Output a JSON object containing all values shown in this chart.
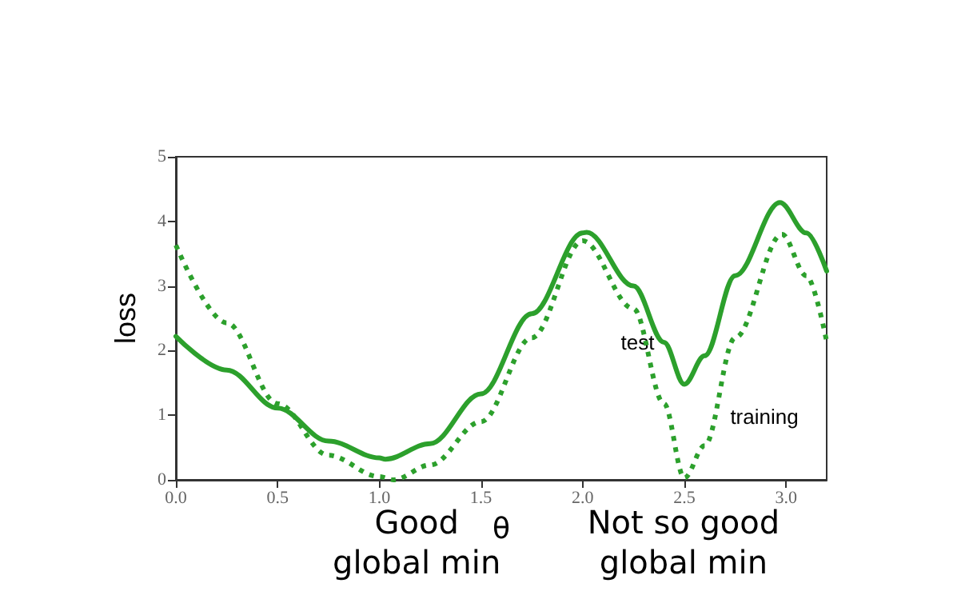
{
  "chart_data": {
    "type": "line",
    "xlabel": "θ",
    "ylabel": "loss",
    "xlim": [
      0,
      3.2
    ],
    "xticks": [
      {
        "value": 0,
        "label": "0.0"
      },
      {
        "value": 0.5,
        "label": "0.5"
      },
      {
        "value": 1,
        "label": "1.0"
      },
      {
        "value": 1.5,
        "label": "1.5"
      },
      {
        "value": 2,
        "label": "2.0"
      },
      {
        "value": 2.5,
        "label": "2.5"
      },
      {
        "value": 3,
        "label": "3.0"
      }
    ],
    "ylim": [
      0,
      5
    ],
    "yticks": [
      0,
      1,
      2,
      3,
      4,
      5
    ],
    "grid": false,
    "marker": "none",
    "series": [
      {
        "name": "test",
        "color": "#2ca02c",
        "line_style": "solid",
        "x": [
          0,
          0.25,
          0.5,
          0.75,
          1.0,
          1.03,
          1.25,
          1.5,
          1.75,
          2.0,
          2.02,
          2.25,
          2.4,
          2.5,
          2.6,
          2.75,
          2.97,
          3.1,
          3.2
        ],
        "values": [
          2.22,
          1.7,
          1.11,
          0.6,
          0.34,
          0.32,
          0.56,
          1.33,
          2.57,
          3.82,
          3.83,
          3.0,
          2.13,
          1.48,
          1.92,
          3.16,
          4.29,
          3.82,
          3.23
        ]
      },
      {
        "name": "training",
        "color": "#2ca02c",
        "line_style": "dotted",
        "x": [
          0,
          0.25,
          0.5,
          0.75,
          1.0,
          1.07,
          1.25,
          1.5,
          1.75,
          2.0,
          2.25,
          2.4,
          2.5,
          2.6,
          2.75,
          2.98,
          3.1,
          3.2
        ],
        "values": [
          3.63,
          2.43,
          1.18,
          0.38,
          0.05,
          0,
          0.23,
          0.9,
          2.2,
          3.7,
          2.65,
          1.18,
          0.03,
          0.53,
          2.2,
          3.8,
          3.16,
          2.14
        ]
      }
    ],
    "annotations": [
      "Good\nglobal min",
      "Not so good\nglobal min"
    ]
  }
}
